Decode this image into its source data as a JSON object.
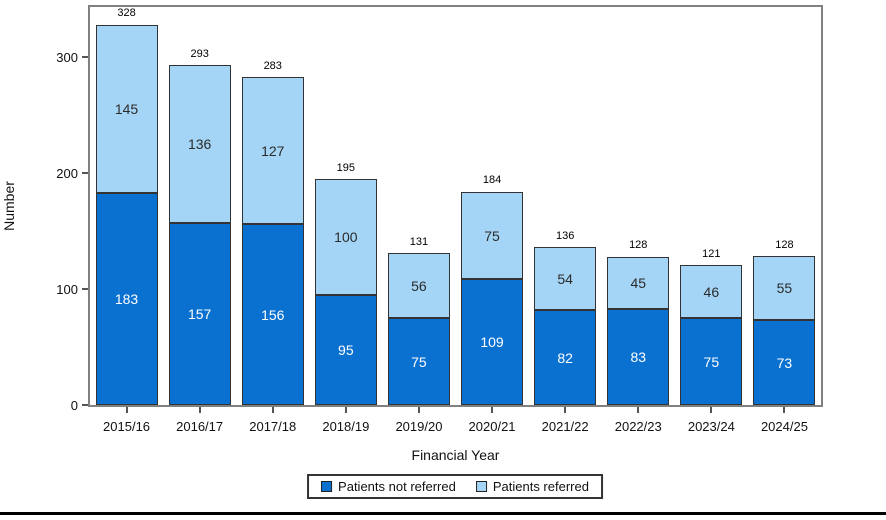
{
  "chart_data": {
    "type": "bar",
    "stacked": true,
    "title": "",
    "xlabel": "Financial Year",
    "ylabel": "Number",
    "categories": [
      "2015/16",
      "2016/17",
      "2017/18",
      "2018/19",
      "2019/20",
      "2020/21",
      "2021/22",
      "2022/23",
      "2023/24",
      "2024/25"
    ],
    "series": [
      {
        "name": "Patients not referred",
        "color": "#0a71d0",
        "label_color": "#ffffff",
        "values": [
          183,
          157,
          156,
          95,
          75,
          109,
          82,
          83,
          75,
          73
        ]
      },
      {
        "name": "Patients referred",
        "color": "#a5d5f6",
        "label_color": "#2b2b2b",
        "values": [
          145,
          136,
          127,
          100,
          56,
          75,
          54,
          45,
          46,
          55
        ]
      }
    ],
    "totals": [
      328,
      293,
      283,
      195,
      131,
      184,
      136,
      128,
      121,
      128
    ],
    "y_ticks": [
      0,
      100,
      200,
      300
    ],
    "ylim": [
      0,
      343
    ],
    "legend_position": "bottom",
    "grid": false,
    "bar_border_color": "#333333",
    "frame_color": "#808080"
  }
}
